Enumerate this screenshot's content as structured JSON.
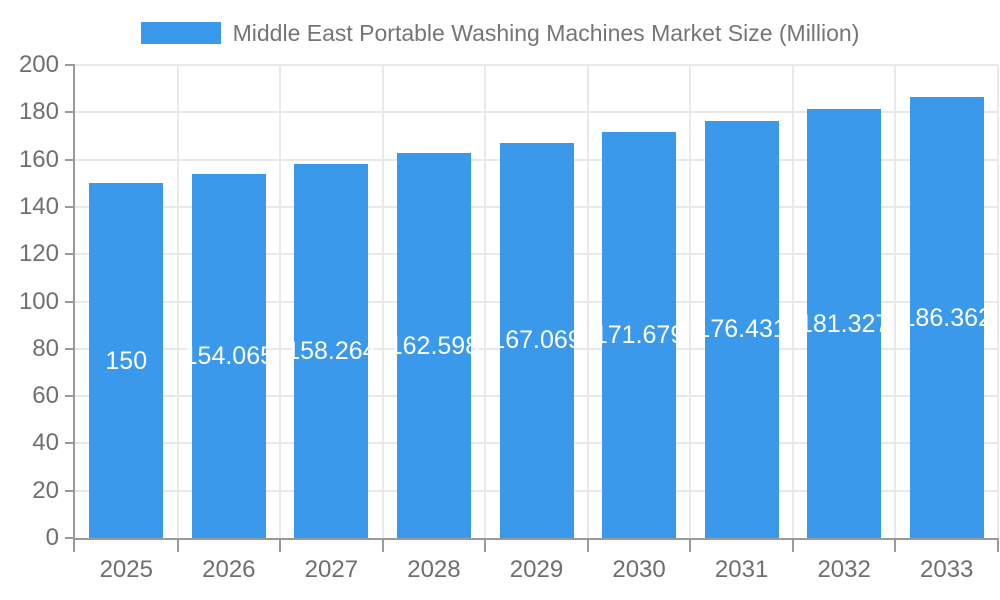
{
  "legend": {
    "label": "Middle East Portable Washing Machines Market Size (Million)"
  },
  "chart_data": {
    "type": "bar",
    "title": "Middle East Portable Washing Machines Market Size (Million)",
    "series_name": "Middle East Portable Washing Machines Market Size (Million)",
    "categories": [
      "2025",
      "2026",
      "2027",
      "2028",
      "2029",
      "2030",
      "2031",
      "2032",
      "2033"
    ],
    "values": [
      150,
      154.065,
      158.264,
      162.598,
      167.069,
      171.679,
      176.431,
      181.327,
      186.362
    ],
    "value_labels": [
      "150",
      "154.065",
      "158.264",
      "162.598",
      "167.069",
      "171.679",
      "176.431",
      "181.327",
      "186.362"
    ],
    "xlabel": "",
    "ylabel": "",
    "ylim": [
      0,
      200
    ],
    "yticks": [
      0,
      20,
      40,
      60,
      80,
      100,
      120,
      140,
      160,
      180,
      200
    ],
    "grid": true,
    "legend_position": "top",
    "bar_color": "#3B99EC",
    "label_position": "inside-center",
    "label_color": "#FFFFFF"
  },
  "colors": {
    "bar": "#3B99EC",
    "axis_line": "#9A9A9A",
    "grid_line": "#E9E9E9",
    "axis_text": "#6F6F6F",
    "legend_text": "#757575",
    "bar_label_text": "#FFFFFF",
    "background": "#FFFFFF"
  }
}
